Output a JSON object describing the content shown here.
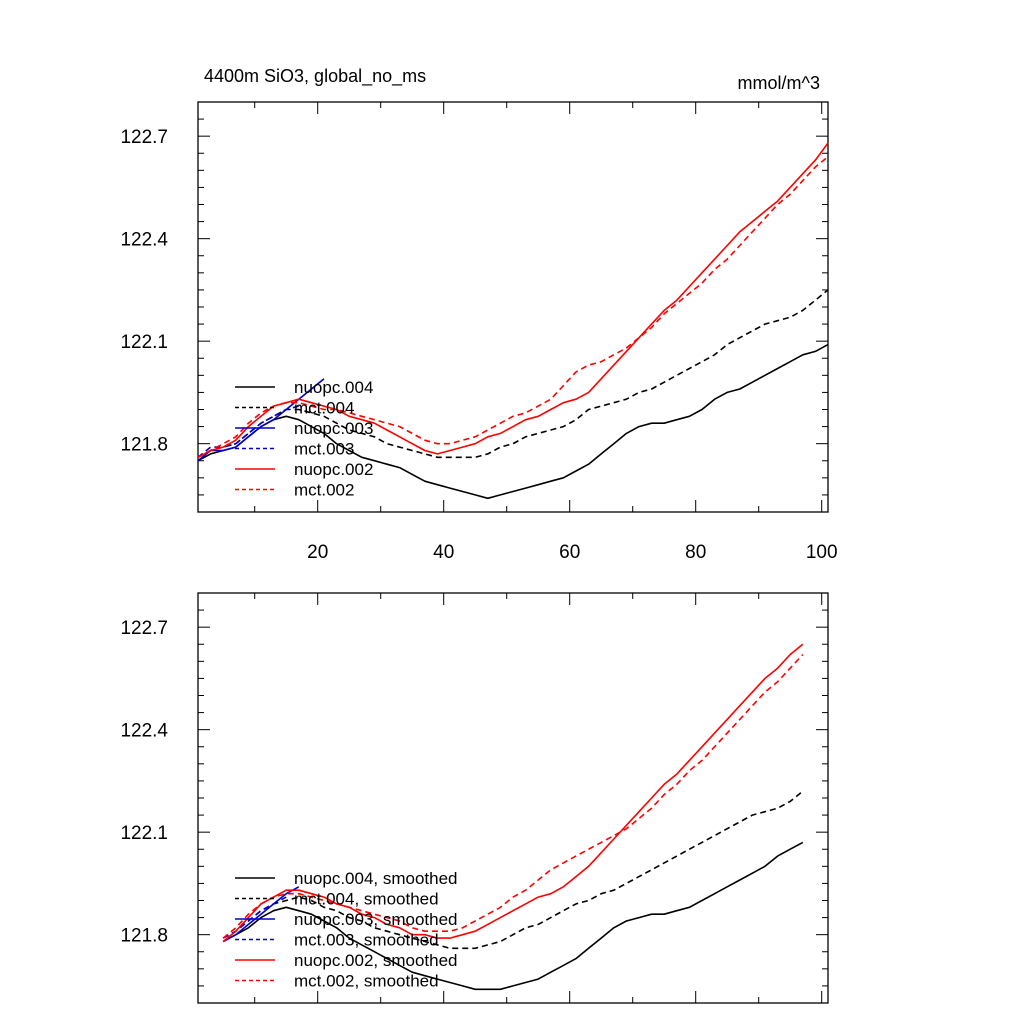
{
  "chart_data": [
    {
      "type": "line",
      "title": "4400m SiO3, global_no_ms",
      "units": "mmol/m^3",
      "xlabel": "",
      "ylabel": "",
      "xlim": [
        1,
        101
      ],
      "ylim": [
        121.6,
        122.8
      ],
      "xticks": [
        "20",
        "40",
        "60",
        "80",
        "100"
      ],
      "yticks": [
        "121.8",
        "122.1",
        "122.4",
        "122.7"
      ],
      "legend": "bottom-left",
      "series": [
        {
          "name": "nuopc.004",
          "color": "#000000",
          "dash": "solid",
          "x": [
            1,
            3,
            5,
            7,
            9,
            11,
            13,
            15,
            17,
            19,
            21,
            23,
            25,
            27,
            29,
            31,
            33,
            35,
            37,
            39,
            41,
            43,
            45,
            47,
            49,
            51,
            53,
            55,
            57,
            59,
            61,
            63,
            65,
            67,
            69,
            71,
            73,
            75,
            77,
            79,
            81,
            83,
            85,
            87,
            89,
            91,
            93,
            95,
            97,
            99,
            101
          ],
          "y": [
            121.75,
            121.77,
            121.78,
            121.79,
            121.82,
            121.85,
            121.87,
            121.88,
            121.87,
            121.85,
            121.83,
            121.8,
            121.78,
            121.76,
            121.75,
            121.74,
            121.73,
            121.71,
            121.69,
            121.68,
            121.67,
            121.66,
            121.65,
            121.64,
            121.65,
            121.66,
            121.67,
            121.68,
            121.69,
            121.7,
            121.72,
            121.74,
            121.77,
            121.8,
            121.83,
            121.85,
            121.86,
            121.86,
            121.87,
            121.88,
            121.9,
            121.93,
            121.95,
            121.96,
            121.98,
            122.0,
            122.02,
            122.04,
            122.06,
            122.07,
            122.09
          ]
        },
        {
          "name": "mct.004",
          "color": "#000000",
          "dash": "dashed",
          "x": [
            1,
            3,
            5,
            7,
            9,
            11,
            13,
            15,
            17,
            19,
            21,
            23,
            25,
            27,
            29,
            31,
            33,
            35,
            37,
            39,
            41,
            43,
            45,
            47,
            49,
            51,
            53,
            55,
            57,
            59,
            61,
            63,
            65,
            67,
            69,
            71,
            73,
            75,
            77,
            79,
            81,
            83,
            85,
            87,
            89,
            91,
            93,
            95,
            97,
            99,
            101
          ],
          "y": [
            121.76,
            121.78,
            121.79,
            121.8,
            121.83,
            121.86,
            121.88,
            121.9,
            121.9,
            121.89,
            121.88,
            121.86,
            121.84,
            121.83,
            121.82,
            121.8,
            121.79,
            121.78,
            121.77,
            121.76,
            121.76,
            121.76,
            121.76,
            121.77,
            121.79,
            121.8,
            121.82,
            121.83,
            121.84,
            121.85,
            121.87,
            121.9,
            121.91,
            121.92,
            121.93,
            121.95,
            121.96,
            121.98,
            122.0,
            122.02,
            122.04,
            122.06,
            122.09,
            122.11,
            122.13,
            122.15,
            122.16,
            122.17,
            122.19,
            122.22,
            122.25
          ]
        },
        {
          "name": "nuopc.003",
          "color": "#0000cc",
          "dash": "solid",
          "x": [
            1,
            3,
            5,
            7,
            9,
            11,
            13,
            15,
            17,
            19,
            21
          ],
          "y": [
            121.75,
            121.78,
            121.78,
            121.79,
            121.82,
            121.85,
            121.87,
            121.9,
            121.93,
            121.96,
            121.99
          ]
        },
        {
          "name": "mct.003",
          "color": "#0000cc",
          "dash": "dashed",
          "x": [
            1,
            3,
            5,
            7,
            9,
            11,
            13,
            15,
            17
          ],
          "y": [
            121.76,
            121.79,
            121.79,
            121.8,
            121.83,
            121.86,
            121.88,
            121.9,
            121.91
          ]
        },
        {
          "name": "nuopc.002",
          "color": "#ff0000",
          "dash": "solid",
          "x": [
            1,
            3,
            5,
            7,
            9,
            11,
            13,
            15,
            17,
            19,
            21,
            23,
            25,
            27,
            29,
            31,
            33,
            35,
            37,
            39,
            41,
            43,
            45,
            47,
            49,
            51,
            53,
            55,
            57,
            59,
            61,
            63,
            65,
            67,
            69,
            71,
            73,
            75,
            77,
            79,
            81,
            83,
            85,
            87,
            89,
            91,
            93,
            95,
            97,
            99,
            101
          ],
          "y": [
            121.76,
            121.78,
            121.79,
            121.81,
            121.85,
            121.88,
            121.91,
            121.92,
            121.93,
            121.92,
            121.91,
            121.9,
            121.88,
            121.87,
            121.86,
            121.84,
            121.82,
            121.8,
            121.78,
            121.77,
            121.78,
            121.79,
            121.8,
            121.82,
            121.83,
            121.85,
            121.87,
            121.88,
            121.9,
            121.92,
            121.93,
            121.95,
            121.99,
            122.03,
            122.07,
            122.11,
            122.15,
            122.19,
            122.22,
            122.26,
            122.3,
            122.34,
            122.38,
            122.42,
            122.45,
            122.48,
            122.51,
            122.55,
            122.59,
            122.63,
            122.68
          ]
        },
        {
          "name": "mct.002",
          "color": "#ff0000",
          "dash": "dashed",
          "x": [
            1,
            3,
            5,
            7,
            9,
            11,
            13,
            15,
            17,
            19,
            21,
            23,
            25,
            27,
            29,
            31,
            33,
            35,
            37,
            39,
            41,
            43,
            45,
            47,
            49,
            51,
            53,
            55,
            57,
            59,
            61,
            63,
            65,
            67,
            69,
            71,
            73,
            75,
            77,
            79,
            81,
            83,
            85,
            87,
            89,
            91,
            93,
            95,
            97,
            99,
            101
          ],
          "y": [
            121.76,
            121.78,
            121.8,
            121.82,
            121.86,
            121.89,
            121.91,
            121.92,
            121.92,
            121.91,
            121.9,
            121.9,
            121.89,
            121.88,
            121.87,
            121.86,
            121.85,
            121.83,
            121.81,
            121.8,
            121.8,
            121.81,
            121.82,
            121.84,
            121.86,
            121.88,
            121.89,
            121.91,
            121.93,
            121.97,
            122.01,
            122.03,
            122.04,
            122.06,
            122.08,
            122.11,
            122.14,
            122.18,
            122.21,
            122.24,
            122.27,
            122.31,
            122.34,
            122.38,
            122.42,
            122.46,
            122.5,
            122.53,
            122.57,
            122.61,
            122.64
          ]
        }
      ]
    },
    {
      "type": "line",
      "title": "",
      "units": "",
      "xlabel": "",
      "ylabel": "",
      "xlim": [
        1,
        101
      ],
      "ylim": [
        121.6,
        122.8
      ],
      "xticks": [],
      "yticks": [
        "121.8",
        "122.1",
        "122.4",
        "122.7"
      ],
      "legend": "bottom-left",
      "series": [
        {
          "name": "nuopc.004, smoothed",
          "color": "#000000",
          "dash": "solid",
          "x": [
            5,
            7,
            9,
            11,
            13,
            15,
            17,
            19,
            21,
            23,
            25,
            27,
            29,
            31,
            33,
            35,
            37,
            39,
            41,
            43,
            45,
            47,
            49,
            51,
            53,
            55,
            57,
            59,
            61,
            63,
            65,
            67,
            69,
            71,
            73,
            75,
            77,
            79,
            81,
            83,
            85,
            87,
            89,
            91,
            93,
            95,
            97
          ],
          "y": [
            121.78,
            121.8,
            121.82,
            121.85,
            121.87,
            121.88,
            121.87,
            121.86,
            121.84,
            121.82,
            121.79,
            121.77,
            121.75,
            121.73,
            121.71,
            121.69,
            121.68,
            121.67,
            121.66,
            121.65,
            121.64,
            121.64,
            121.64,
            121.65,
            121.66,
            121.67,
            121.69,
            121.71,
            121.73,
            121.76,
            121.79,
            121.82,
            121.84,
            121.85,
            121.86,
            121.86,
            121.87,
            121.88,
            121.9,
            121.92,
            121.94,
            121.96,
            121.98,
            122.0,
            122.03,
            122.05,
            122.07
          ]
        },
        {
          "name": "mct.004, smoothed",
          "color": "#000000",
          "dash": "dashed",
          "x": [
            5,
            7,
            9,
            11,
            13,
            15,
            17,
            19,
            21,
            23,
            25,
            27,
            29,
            31,
            33,
            35,
            37,
            39,
            41,
            43,
            45,
            47,
            49,
            51,
            53,
            55,
            57,
            59,
            61,
            63,
            65,
            67,
            69,
            71,
            73,
            75,
            77,
            79,
            81,
            83,
            85,
            87,
            89,
            91,
            93,
            95,
            97
          ],
          "y": [
            121.79,
            121.81,
            121.84,
            121.87,
            121.89,
            121.9,
            121.91,
            121.9,
            121.88,
            121.87,
            121.85,
            121.84,
            121.82,
            121.81,
            121.8,
            121.79,
            121.78,
            121.77,
            121.76,
            121.76,
            121.76,
            121.77,
            121.78,
            121.8,
            121.82,
            121.83,
            121.85,
            121.87,
            121.89,
            121.9,
            121.92,
            121.93,
            121.95,
            121.97,
            121.99,
            122.01,
            122.03,
            122.05,
            122.07,
            122.09,
            122.11,
            122.13,
            122.15,
            122.16,
            122.17,
            122.19,
            122.22
          ]
        },
        {
          "name": "nuopc.003, smoothed",
          "color": "#0000cc",
          "dash": "solid",
          "x": [
            5,
            7,
            9,
            11,
            13,
            15,
            17
          ],
          "y": [
            121.78,
            121.8,
            121.83,
            121.86,
            121.89,
            121.92,
            121.94
          ]
        },
        {
          "name": "mct.003, smoothed",
          "color": "#0000cc",
          "dash": "dashed",
          "x": [
            5,
            7,
            9,
            11,
            13,
            15
          ],
          "y": [
            121.79,
            121.81,
            121.84,
            121.87,
            121.89,
            121.91
          ]
        },
        {
          "name": "nuopc.002, smoothed",
          "color": "#ff0000",
          "dash": "solid",
          "x": [
            5,
            7,
            9,
            11,
            13,
            15,
            17,
            19,
            21,
            23,
            25,
            27,
            29,
            31,
            33,
            35,
            37,
            39,
            41,
            43,
            45,
            47,
            49,
            51,
            53,
            55,
            57,
            59,
            61,
            63,
            65,
            67,
            69,
            71,
            73,
            75,
            77,
            79,
            81,
            83,
            85,
            87,
            89,
            91,
            93,
            95,
            97
          ],
          "y": [
            121.78,
            121.81,
            121.85,
            121.89,
            121.91,
            121.93,
            121.93,
            121.92,
            121.91,
            121.89,
            121.88,
            121.86,
            121.85,
            121.83,
            121.82,
            121.8,
            121.8,
            121.79,
            121.79,
            121.8,
            121.81,
            121.83,
            121.85,
            121.87,
            121.89,
            121.91,
            121.92,
            121.94,
            121.97,
            122.0,
            122.04,
            122.08,
            122.12,
            122.16,
            122.2,
            122.24,
            122.27,
            122.31,
            122.35,
            122.39,
            122.43,
            122.47,
            122.51,
            122.55,
            122.58,
            122.62,
            122.65
          ]
        },
        {
          "name": "mct.002, smoothed",
          "color": "#ff0000",
          "dash": "dashed",
          "x": [
            5,
            7,
            9,
            11,
            13,
            15,
            17,
            19,
            21,
            23,
            25,
            27,
            29,
            31,
            33,
            35,
            37,
            39,
            41,
            43,
            45,
            47,
            49,
            51,
            53,
            55,
            57,
            59,
            61,
            63,
            65,
            67,
            69,
            71,
            73,
            75,
            77,
            79,
            81,
            83,
            85,
            87,
            89,
            91,
            93,
            95,
            97
          ],
          "y": [
            121.79,
            121.82,
            121.86,
            121.89,
            121.91,
            121.92,
            121.92,
            121.91,
            121.9,
            121.89,
            121.88,
            121.87,
            121.86,
            121.85,
            121.84,
            121.82,
            121.81,
            121.81,
            121.81,
            121.82,
            121.84,
            121.86,
            121.88,
            121.91,
            121.93,
            121.96,
            121.99,
            122.01,
            122.03,
            122.05,
            122.07,
            122.09,
            122.11,
            122.14,
            122.17,
            122.21,
            122.24,
            122.28,
            122.31,
            122.35,
            122.39,
            122.43,
            122.47,
            122.51,
            122.54,
            122.58,
            122.62
          ]
        }
      ]
    }
  ]
}
